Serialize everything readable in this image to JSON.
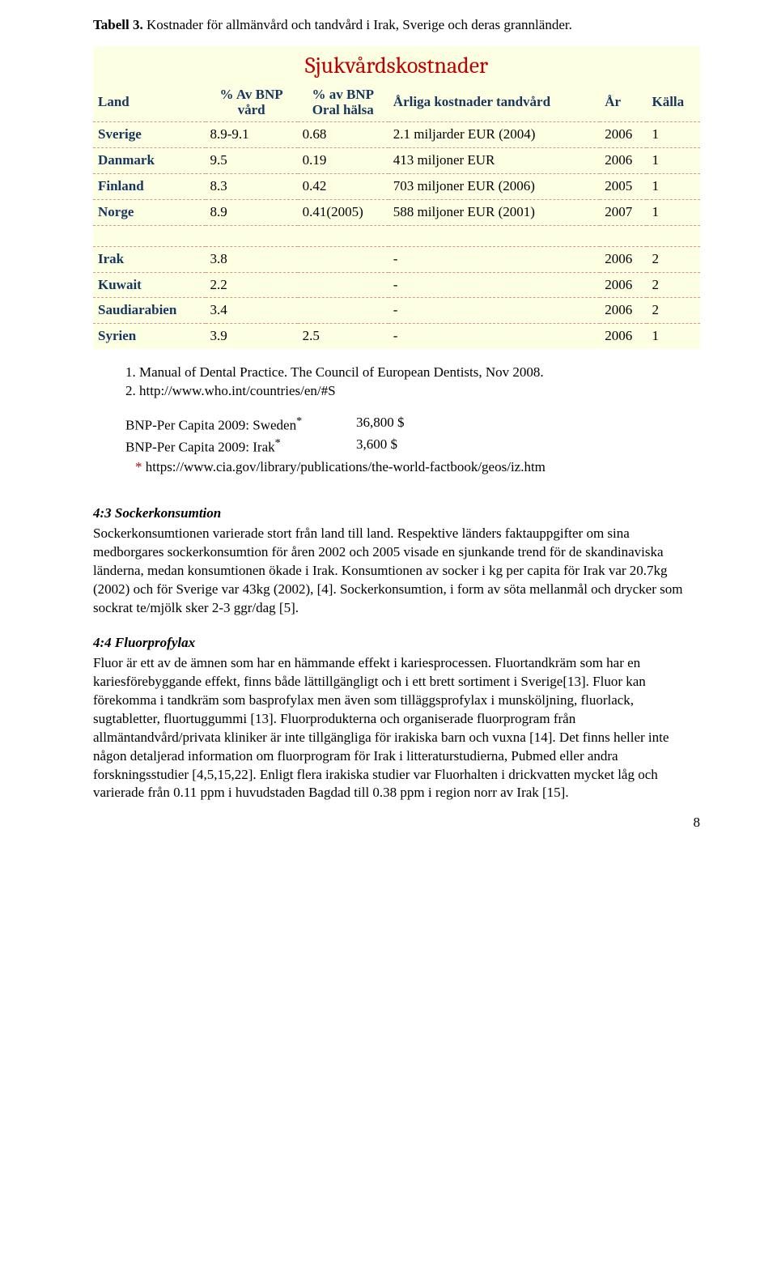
{
  "caption_prefix": "Tabell 3.",
  "caption_text": " Kostnader för allmänvård och tandvård i Irak, Sverige och deras grannländer.",
  "table": {
    "background": "#fdffe3",
    "row_border_color": "#d99694",
    "title": "Sjukvårdskostnader",
    "title_color": "#c00000",
    "header_color": "#17365d",
    "columns": {
      "land": "Land",
      "bnp_vard1": "% Av BNP",
      "bnp_vard2": "vård",
      "bnp_oral1": "% av BNP",
      "bnp_oral2": "Oral hälsa",
      "annual": "Årliga kostnader tandvård",
      "year": "År",
      "source": "Källa"
    },
    "group1": [
      {
        "land": "Sverige",
        "bnp": "8.9-9.1",
        "oral": "0.68",
        "annual": "2.1 miljarder EUR (2004)",
        "year": "2006",
        "src": "1"
      },
      {
        "land": "Danmark",
        "bnp": "9.5",
        "oral": "0.19",
        "annual": "413 miljoner EUR",
        "year": "2006",
        "src": "1"
      },
      {
        "land": "Finland",
        "bnp": "8.3",
        "oral": "0.42",
        "annual": "703 miljoner EUR (2006)",
        "year": "2005",
        "src": "1"
      },
      {
        "land": "Norge",
        "bnp": "8.9",
        "oral": "0.41(2005)",
        "annual": "588 miljoner EUR (2001)",
        "year": "2007",
        "src": "1"
      }
    ],
    "group2": [
      {
        "land": "Irak",
        "bnp": "3.8",
        "oral": "",
        "annual": "-",
        "year": "2006",
        "src": "2"
      },
      {
        "land": "Kuwait",
        "bnp": "2.2",
        "oral": "",
        "annual": "-",
        "year": "2006",
        "src": "2"
      },
      {
        "land": "Saudiarabien",
        "bnp": "3.4",
        "oral": "",
        "annual": "-",
        "year": "2006",
        "src": "2"
      },
      {
        "land": "Syrien",
        "bnp": "3.9",
        "oral": "2.5",
        "annual": "-",
        "year": "2006",
        "src": "1"
      }
    ]
  },
  "refs": {
    "r1": "1. Manual of Dental Practice. The Council of European Dentists, Nov 2008.",
    "r2": "2. http://www.who.int/countries/en/#S"
  },
  "bnp": {
    "l1_label": "BNP-Per Capita 2009: Sweden",
    "l1_val": "36,800 $",
    "l2_label": "BNP-Per Capita 2009: Irak",
    "l2_val": "3,600 $",
    "star": "*",
    "link": " https://www.cia.gov/library/publications/the-world-factbook/geos/iz.htm"
  },
  "s43": {
    "title": "4:3 Sockerkonsumtion",
    "body": "Sockerkonsumtionen varierade stort från land till land. Respektive länders faktauppgifter om sina medborgares sockerkonsumtion för åren 2002 och 2005 visade en sjunkande trend för de skandinaviska länderna, medan konsumtionen ökade i Irak. Konsumtionen av socker i kg per capita för Irak var 20.7kg (2002) och för Sverige var 43kg (2002), [4]. Sockerkonsumtion, i form av söta mellanmål och drycker som sockrat te/mjölk sker 2-3 ggr/dag [5]."
  },
  "s44": {
    "title": "4:4 Fluorprofylax",
    "body": "Fluor är ett av de ämnen som har en hämmande effekt i kariesprocessen. Fluortandkräm som har en kariesförebyggande effekt, finns både lättillgängligt och i ett brett sortiment i Sverige[13]. Fluor kan förekomma i tandkräm som basprofylax men även som tilläggsprofylax i munsköljning, fluorlack, sugtabletter, fluortuggummi [13]. Fluorprodukterna och organiserade fluorprogram från allmäntandvård/privata kliniker är inte tillgängliga för irakiska barn och vuxna [14]. Det finns heller inte någon detaljerad information om fluorprogram för Irak i litteraturstudierna, Pubmed eller andra forskningsstudier [4,5,15,22]. Enligt flera irakiska studier var Fluorhalten i drickvatten mycket låg och varierade från 0.11 ppm i huvudstaden Bagdad till 0.38 ppm i region norr av Irak [15]."
  },
  "page_number": "8"
}
